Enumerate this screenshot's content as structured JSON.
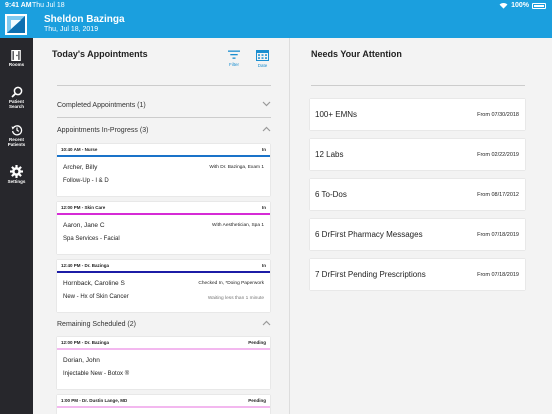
{
  "status_bar": {
    "time": "9:41 AM",
    "date": "Thu Jul 18",
    "battery": "100%"
  },
  "header": {
    "user_name": "Sheldon Bazinga",
    "date": "Thu, Jul 18, 2019"
  },
  "sidebar": {
    "items": [
      {
        "label": "Rooms",
        "icon": "rooms-icon"
      },
      {
        "label": "Patient Search",
        "icon": "search-icon"
      },
      {
        "label": "Recent Patients",
        "icon": "history-icon"
      },
      {
        "label": "Settings",
        "icon": "gear-icon"
      }
    ]
  },
  "appointments": {
    "title": "Today's Appointments",
    "filter_label": "Filter",
    "date_label": "Date",
    "completed": {
      "label": "Completed Appointments (1)"
    },
    "in_progress": {
      "label": "Appointments In-Progress (3)",
      "cards": [
        {
          "time": "10:40 AM - Nurse",
          "status": "In",
          "color": "#1a73c9",
          "name": "Archer, Billy",
          "meta": "With Dr. Bazinga, Exam 1",
          "visit": "Follow-Up - I & D",
          "wait": ""
        },
        {
          "time": "12:00 PM - Skin Care",
          "status": "In",
          "color": "#d62bd6",
          "name": "Aaron, Jane C",
          "meta": "With Aesthetician, Spa 1",
          "visit": "Spa Services - Facial",
          "wait": ""
        },
        {
          "time": "12:40 PM - Dr. Bazinga",
          "status": "In",
          "color": "#1c1ca6",
          "name": "Hornback, Caroline S",
          "meta": "Checked In, *Doing Paperwork",
          "visit": "New - Hx of Skin Cancer",
          "wait": "Waiting less than 1 minute"
        }
      ]
    },
    "remaining": {
      "label": "Remaining Scheduled (2)",
      "cards": [
        {
          "time": "12:00 PM - Dr. Bazinga",
          "status": "Pending",
          "color": "#f3b8ef",
          "name": "Dorian, John",
          "meta": "",
          "visit": "Injectable New - Botox ®",
          "wait": ""
        },
        {
          "time": "1:00 PM - Dr. Dustin Lange, MD",
          "status": "Pending",
          "color": "#f3b8ef"
        }
      ]
    }
  },
  "attention": {
    "title": "Needs Your Attention",
    "items": [
      {
        "label": "100+ EMNs",
        "from": "From 07/30/2018"
      },
      {
        "label": "12 Labs",
        "from": "From 02/22/2019"
      },
      {
        "label": "6 To-Dos",
        "from": "From 08/17/2012"
      },
      {
        "label": "6 DrFirst Pharmacy Messages",
        "from": "From 07/18/2019"
      },
      {
        "label": "7 DrFirst Pending Prescriptions",
        "from": "From 07/18/2019"
      }
    ]
  }
}
